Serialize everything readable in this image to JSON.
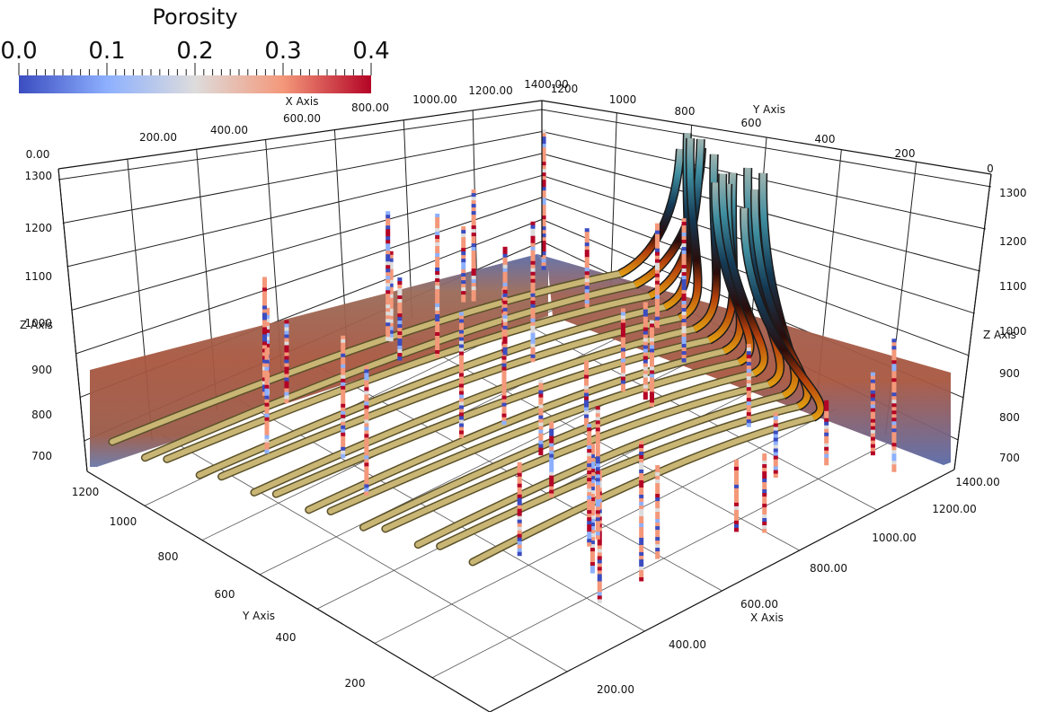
{
  "chart_data": {
    "type": "scatter",
    "title": "",
    "colorbar": {
      "title": "Porosity",
      "range": [
        0.0,
        0.4
      ],
      "tick_labels": [
        "0.0",
        "0.1",
        "0.2",
        "0.3",
        "0.4"
      ],
      "colormap": "cool-to-warm",
      "colors": [
        "#3b4cc0",
        "#8db0fe",
        "#dddcdc",
        "#f4987a",
        "#b40426"
      ]
    },
    "axes": {
      "x": {
        "title": "X Axis",
        "range": [
          0,
          1400
        ],
        "top_ticks": [
          "0.00",
          "200.00",
          "400.00",
          "600.00",
          "800.00",
          "1000.00",
          "1200.00",
          "1400.00"
        ],
        "bottom_ticks": [
          "200.00",
          "400.00",
          "600.00",
          "800.00",
          "1000.00",
          "1200.00",
          "1400.00"
        ]
      },
      "y": {
        "title": "Y Axis",
        "range": [
          0,
          1300
        ],
        "top_ticks": [
          "1200",
          "1000",
          "800",
          "600",
          "400",
          "200",
          "0"
        ],
        "bottom_ticks": [
          "1200",
          "1000",
          "800",
          "600",
          "400",
          "200"
        ]
      },
      "z": {
        "title": "Z Axis",
        "range": [
          650,
          1300
        ],
        "ticks": [
          "1300",
          "1200",
          "1100",
          "1000",
          "900",
          "800",
          "700"
        ]
      }
    },
    "grid": true,
    "legend": "top-left",
    "layers": {
      "seismic_sections": 2,
      "horizontal_wells": 14,
      "vertical_wells_colored_by_porosity": 40
    }
  }
}
